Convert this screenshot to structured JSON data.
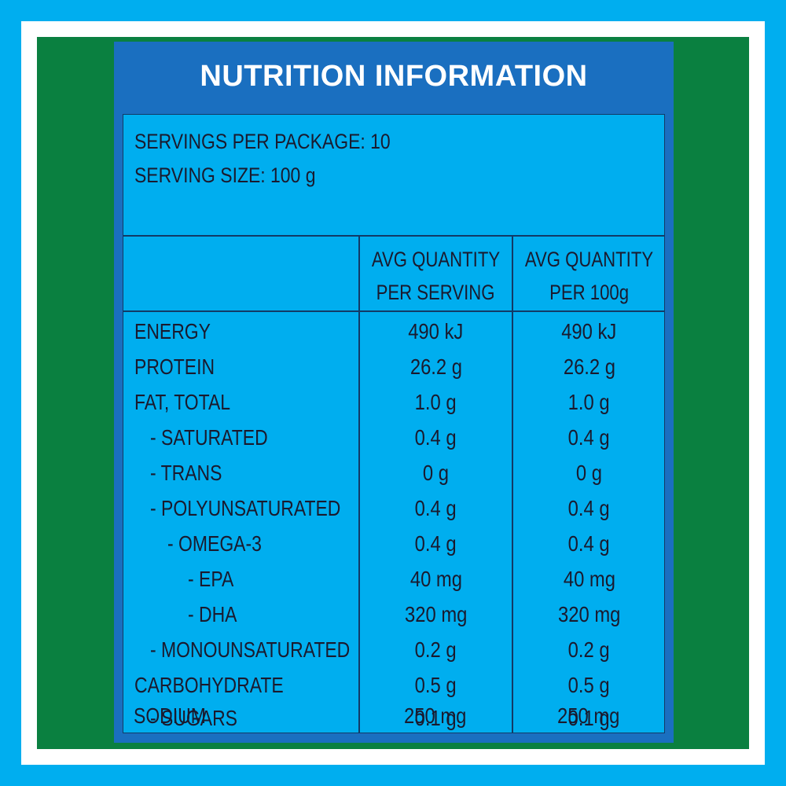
{
  "colors": {
    "outer_border": "#00aeef",
    "frame": "#ffffff",
    "panel": "#0a8040",
    "card": "#1a6fc0",
    "table_bg": "#00aeef",
    "text": "#1a1a2e",
    "title_text": "#ffffff"
  },
  "title": "NUTRITION INFORMATION",
  "servings_per_package": "SERVINGS PER PACKAGE: 10",
  "serving_size": "SERVING SIZE: 100 g",
  "columns": {
    "per_serving_line1": "AVG QUANTITY",
    "per_serving_line2": "PER SERVING",
    "per_100g_line1": "AVG QUANTITY",
    "per_100g_line2": "PER 100g"
  },
  "rows": [
    {
      "name": "ENERGY",
      "per_serving": "490 kJ",
      "per_100g": "490 kJ"
    },
    {
      "name": "PROTEIN",
      "per_serving": "26.2 g",
      "per_100g": "26.2 g"
    },
    {
      "name": "FAT, TOTAL",
      "per_serving": "1.0 g",
      "per_100g": "1.0 g"
    },
    {
      "name": "- SATURATED",
      "per_serving": "0.4 g",
      "per_100g": "0.4 g"
    },
    {
      "name": "- TRANS",
      "per_serving": "0 g",
      "per_100g": "0 g"
    },
    {
      "name": "- POLYUNSATURATED",
      "per_serving": "0.4 g",
      "per_100g": "0.4 g"
    },
    {
      "name": "- OMEGA-3",
      "per_serving": "0.4 g",
      "per_100g": "0.4 g"
    },
    {
      "name": "- EPA",
      "per_serving": "40 mg",
      "per_100g": "40 mg"
    },
    {
      "name": "- DHA",
      "per_serving": "320 mg",
      "per_100g": "320 mg"
    },
    {
      "name": "- MONOUNSATURATED",
      "per_serving": "0.2 g",
      "per_100g": "0.2 g"
    },
    {
      "name": "CARBOHYDRATE",
      "per_serving": "0.5 g",
      "per_100g": "0.5 g"
    },
    {
      "name": "- SUGARS",
      "per_serving": "0.1 g",
      "per_100g": "0.1 g"
    },
    {
      "name": "SODIUM",
      "per_serving": "250 mg",
      "per_100g": "250 mg"
    }
  ]
}
